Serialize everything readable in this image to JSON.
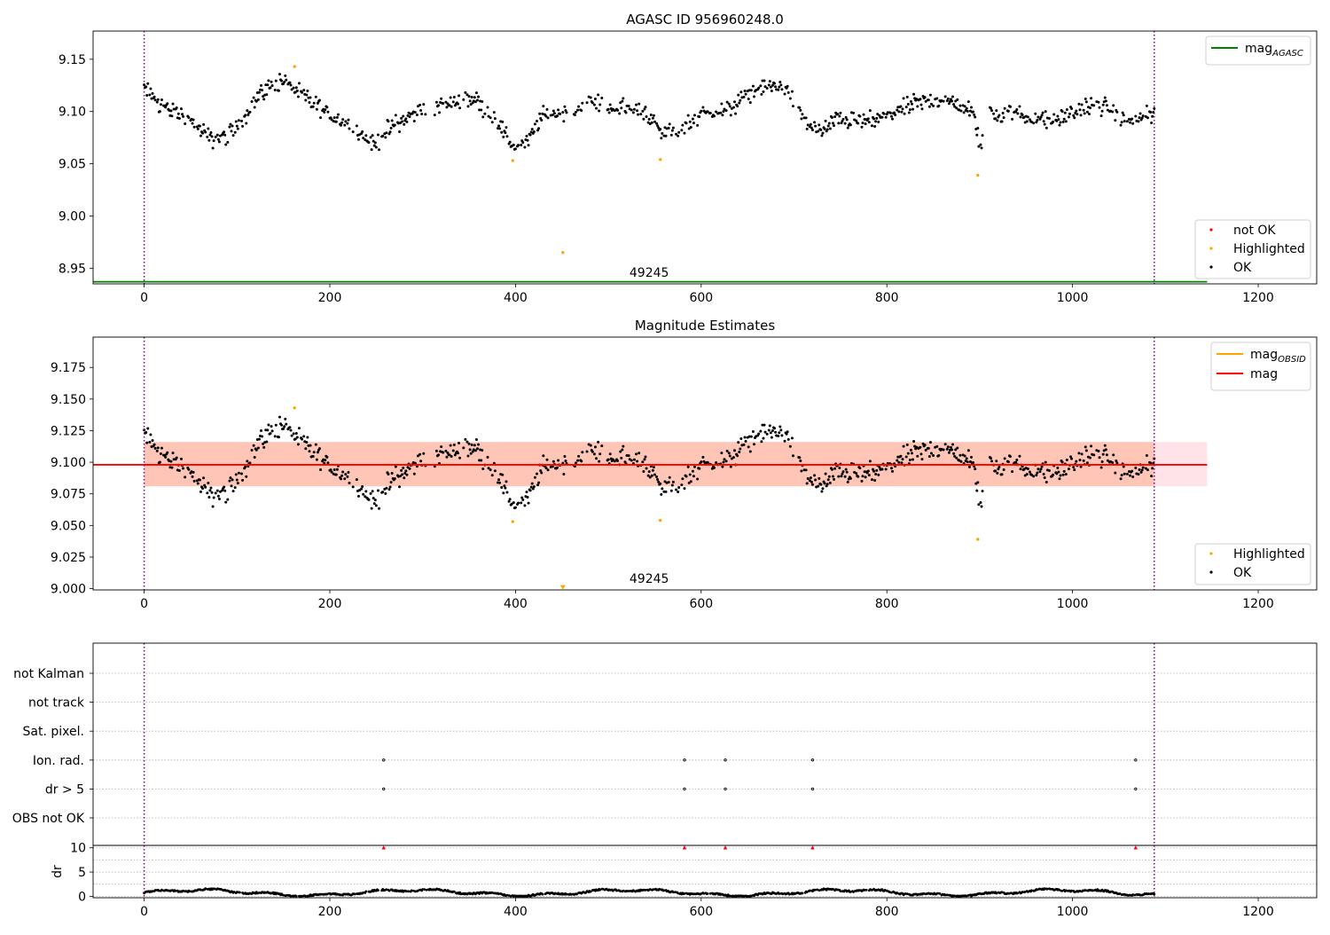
{
  "figure": {
    "background": "#ffffff",
    "colors": {
      "ok": "#000000",
      "highlighted": "#ffa500",
      "not_ok": "#ff0000",
      "mag_agasc": "#008000",
      "mag_obsid": "#ffa500",
      "mag": "#ff0000",
      "obsid_line": "#800080",
      "band_outer": "#ffc0cb",
      "band_inner": "#ffa07a",
      "grid": "#b0b0b0"
    }
  },
  "chart_data": [
    {
      "id": "agasc",
      "type": "scatter",
      "title": "AGASC ID 956960248.0",
      "xlabel": "",
      "ylabel": "",
      "xlim": [
        -55,
        1263
      ],
      "ylim": [
        8.935,
        9.177
      ],
      "xticks": [
        0,
        200,
        400,
        600,
        800,
        1000,
        1200
      ],
      "xtick_labels": [
        "0",
        "200",
        "400",
        "600",
        "800",
        "1000",
        "1200"
      ],
      "yticks": [
        8.95,
        9.0,
        9.05,
        9.1,
        9.15
      ],
      "ytick_labels": [
        "8.95",
        "9.00",
        "9.05",
        "9.10",
        "9.15"
      ],
      "grid": false,
      "vlines": [
        0,
        1088
      ],
      "obsid_label": {
        "text": "49245",
        "x": 544
      },
      "hlines": [
        {
          "name": "mag_AGASC",
          "y": 8.937,
          "x": [
            -55,
            1145
          ]
        }
      ],
      "legend_lines": {
        "position": "upper right",
        "entries": [
          {
            "base": "mag",
            "sub": "AGASC",
            "color_key": "mag_agasc"
          }
        ]
      },
      "legend_points": {
        "position": "lower right",
        "entries": [
          {
            "label": "not OK",
            "color_key": "not_ok"
          },
          {
            "label": "Highlighted",
            "color_key": "highlighted"
          },
          {
            "label": "OK",
            "color_key": "ok"
          }
        ]
      },
      "series": [
        {
          "name": "OK",
          "generator": "lightcurve"
        },
        {
          "name": "Highlighted",
          "x": [
            162,
            397,
            451,
            556,
            898
          ],
          "y": [
            9.143,
            9.053,
            8.965,
            9.054,
            9.039
          ]
        }
      ]
    },
    {
      "id": "mag_estimates",
      "type": "scatter",
      "title": "Magnitude Estimates",
      "xlabel": "",
      "ylabel": "",
      "xlim": [
        -55,
        1263
      ],
      "ylim": [
        8.999,
        9.199
      ],
      "xticks": [
        0,
        200,
        400,
        600,
        800,
        1000,
        1200
      ],
      "xtick_labels": [
        "0",
        "200",
        "400",
        "600",
        "800",
        "1000",
        "1200"
      ],
      "yticks": [
        9.0,
        9.025,
        9.05,
        9.075,
        9.1,
        9.125,
        9.15,
        9.175
      ],
      "ytick_labels": [
        "9.000",
        "9.025",
        "9.050",
        "9.075",
        "9.100",
        "9.125",
        "9.150",
        "9.175"
      ],
      "grid": false,
      "vlines": [
        0,
        1088
      ],
      "obsid_label": {
        "text": "49245",
        "x": 544
      },
      "bands": [
        {
          "x": [
            0,
            1145
          ],
          "y": [
            9.081,
            9.116
          ],
          "color_key": "band_outer",
          "opacity": 0.45
        },
        {
          "x": [
            0,
            1088
          ],
          "y": [
            9.081,
            9.116
          ],
          "color_key": "band_inner",
          "opacity": 0.45
        }
      ],
      "hlines": [
        {
          "name": "mag_OBSID",
          "y": 9.098,
          "x": [
            0,
            1088
          ]
        },
        {
          "name": "mag",
          "y": 9.098,
          "x": [
            -55,
            1145
          ]
        }
      ],
      "legend_lines": {
        "position": "upper right",
        "entries": [
          {
            "base": "mag",
            "sub": "OBSID",
            "color_key": "mag_obsid"
          },
          {
            "base": "mag",
            "sub": "",
            "color_key": "mag"
          }
        ]
      },
      "legend_points": {
        "position": "lower right",
        "entries": [
          {
            "label": "Highlighted",
            "color_key": "highlighted"
          },
          {
            "label": "OK",
            "color_key": "ok"
          }
        ]
      },
      "series": [
        {
          "name": "OK",
          "generator": "lightcurve"
        },
        {
          "name": "Highlighted",
          "x": [
            162,
            397,
            556,
            898
          ],
          "y": [
            9.143,
            9.053,
            9.054,
            9.039
          ]
        },
        {
          "name": "Highlighted (off scale)",
          "x": [
            451
          ],
          "y": [
            9.0
          ],
          "marker": "triangle-down"
        }
      ]
    },
    {
      "id": "flags",
      "type": "scatter",
      "title": "",
      "xlabel": "",
      "ylabel": "",
      "xlim": [
        -55,
        1263
      ],
      "grid": true,
      "vlines": [
        0,
        1088
      ],
      "categories": [
        "not Kalman",
        "not track",
        "Sat. pixel.",
        "Ion. rad.",
        "dr > 5",
        "OBS not OK"
      ],
      "flags": [
        {
          "category": "Ion. rad.",
          "x": [
            258,
            582,
            626,
            720,
            1068
          ]
        },
        {
          "category": "dr > 5",
          "x": [
            258,
            582,
            626,
            720,
            1068
          ]
        }
      ]
    },
    {
      "id": "dr",
      "type": "scatter",
      "title": "",
      "xlabel": "",
      "ylabel": "dr",
      "xlim": [
        -55,
        1263
      ],
      "ylim": [
        -0.3,
        10.5
      ],
      "xticks": [
        0,
        200,
        400,
        600,
        800,
        1000,
        1200
      ],
      "xtick_labels": [
        "0",
        "200",
        "400",
        "600",
        "800",
        "1000",
        "1200"
      ],
      "yticks": [
        0,
        5,
        10
      ],
      "ytick_labels": [
        "0",
        "5",
        "10"
      ],
      "grid": true,
      "vlines": [
        0,
        1088
      ],
      "series": [
        {
          "name": "dr",
          "generator": "dr"
        },
        {
          "name": "dr > 5 (clipped)",
          "x": [
            258,
            582,
            626,
            720,
            1068
          ],
          "y": [
            10,
            10,
            10,
            10,
            10
          ],
          "marker": "triangle-up"
        }
      ]
    }
  ]
}
